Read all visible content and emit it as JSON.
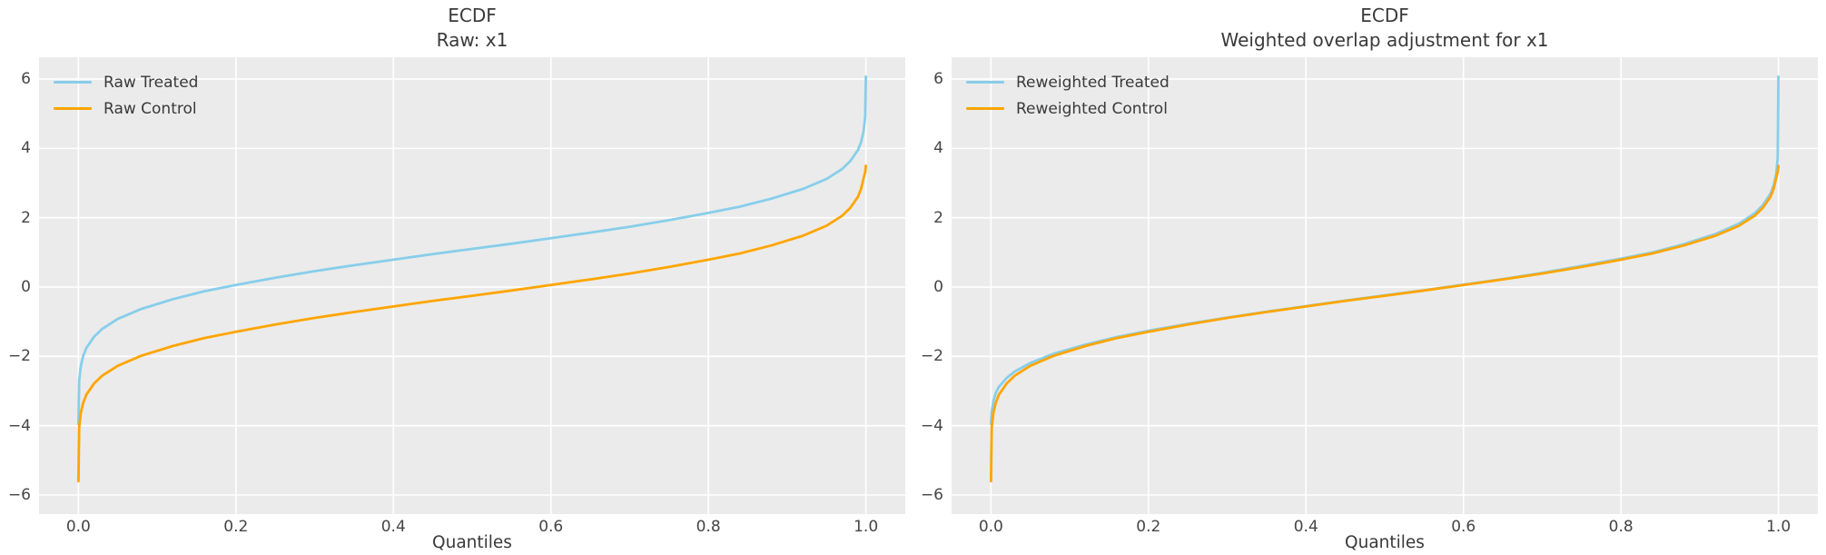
{
  "figure": {
    "background": "#ffffff",
    "plot_background": "#ebebeb",
    "grid_color": "#ffffff",
    "text_color": "#3a3a3a",
    "tick_color": "#454545"
  },
  "chart_data": [
    {
      "type": "line",
      "title": "ECDF",
      "subtitle": "Raw: x1",
      "xlabel": "Quantiles",
      "legend_position": "upper left",
      "grid": true,
      "xlim": [
        -0.05,
        1.05
      ],
      "ylim": [
        -6.55,
        6.63
      ],
      "xticks": [
        0.0,
        0.2,
        0.4,
        0.6,
        0.8,
        1.0
      ],
      "xtick_labels": [
        "0.0",
        "0.2",
        "0.4",
        "0.6",
        "0.8",
        "1.0"
      ],
      "yticks": [
        -6,
        -4,
        -2,
        0,
        2,
        4,
        6
      ],
      "ytick_labels": [
        "−6",
        "−4",
        "−2",
        "0",
        "2",
        "4",
        "6"
      ],
      "x": [
        0,
        0.001,
        0.003,
        0.006,
        0.01,
        0.02,
        0.03,
        0.05,
        0.08,
        0.12,
        0.16,
        0.2,
        0.25,
        0.3,
        0.35,
        0.4,
        0.45,
        0.5,
        0.55,
        0.6,
        0.65,
        0.7,
        0.75,
        0.8,
        0.84,
        0.88,
        0.92,
        0.95,
        0.97,
        0.98,
        0.99,
        0.994,
        0.997,
        0.999,
        1.0
      ],
      "series": [
        {
          "name": "Raw Treated",
          "color": "#87ceeb",
          "values": [
            -3.95,
            -2.7,
            -2.28,
            -1.99,
            -1.76,
            -1.43,
            -1.21,
            -0.92,
            -0.63,
            -0.35,
            -0.12,
            0.06,
            0.27,
            0.46,
            0.63,
            0.79,
            0.95,
            1.1,
            1.25,
            1.41,
            1.57,
            1.74,
            1.93,
            2.14,
            2.32,
            2.55,
            2.83,
            3.12,
            3.41,
            3.63,
            3.96,
            4.19,
            4.48,
            4.9,
            6.07
          ]
        },
        {
          "name": "Raw Control",
          "color": "#ffa500",
          "values": [
            -5.6,
            -4.05,
            -3.63,
            -3.34,
            -3.11,
            -2.78,
            -2.56,
            -2.27,
            -1.98,
            -1.7,
            -1.47,
            -1.29,
            -1.08,
            -0.89,
            -0.72,
            -0.56,
            -0.4,
            -0.25,
            -0.1,
            0.06,
            0.22,
            0.39,
            0.58,
            0.79,
            0.97,
            1.2,
            1.48,
            1.77,
            2.06,
            2.28,
            2.61,
            2.84,
            3.13,
            3.32,
            3.5
          ]
        }
      ]
    },
    {
      "type": "line",
      "title": "ECDF",
      "subtitle": "Weighted overlap adjustment for x1",
      "xlabel": "Quantiles",
      "legend_position": "upper left",
      "grid": true,
      "xlim": [
        -0.05,
        1.05
      ],
      "ylim": [
        -6.55,
        6.63
      ],
      "xticks": [
        0.0,
        0.2,
        0.4,
        0.6,
        0.8,
        1.0
      ],
      "xtick_labels": [
        "0.0",
        "0.2",
        "0.4",
        "0.6",
        "0.8",
        "1.0"
      ],
      "yticks": [
        -6,
        -4,
        -2,
        0,
        2,
        4,
        6
      ],
      "ytick_labels": [
        "−6",
        "−4",
        "−2",
        "0",
        "2",
        "4",
        "6"
      ],
      "x": [
        0,
        0.001,
        0.003,
        0.006,
        0.01,
        0.02,
        0.03,
        0.05,
        0.08,
        0.12,
        0.16,
        0.2,
        0.25,
        0.3,
        0.35,
        0.4,
        0.45,
        0.5,
        0.55,
        0.6,
        0.65,
        0.7,
        0.75,
        0.8,
        0.84,
        0.88,
        0.92,
        0.95,
        0.97,
        0.98,
        0.99,
        0.994,
        0.997,
        0.999,
        1.0
      ],
      "series": [
        {
          "name": "Reweighted Treated",
          "color": "#87ceeb",
          "values": [
            -3.95,
            -3.6,
            -3.3,
            -3.06,
            -2.88,
            -2.62,
            -2.44,
            -2.19,
            -1.92,
            -1.66,
            -1.44,
            -1.26,
            -1.06,
            -0.88,
            -0.71,
            -0.55,
            -0.39,
            -0.24,
            -0.09,
            0.07,
            0.23,
            0.41,
            0.61,
            0.82,
            1.0,
            1.24,
            1.53,
            1.83,
            2.13,
            2.36,
            2.7,
            2.94,
            3.24,
            3.7,
            6.07
          ]
        },
        {
          "name": "Reweighted Control",
          "color": "#ffa500",
          "values": [
            -5.6,
            -4.05,
            -3.63,
            -3.34,
            -3.11,
            -2.78,
            -2.56,
            -2.27,
            -1.98,
            -1.7,
            -1.47,
            -1.29,
            -1.08,
            -0.89,
            -0.72,
            -0.56,
            -0.4,
            -0.25,
            -0.1,
            0.06,
            0.22,
            0.39,
            0.58,
            0.79,
            0.97,
            1.2,
            1.48,
            1.77,
            2.06,
            2.28,
            2.61,
            2.84,
            3.13,
            3.32,
            3.5
          ]
        }
      ]
    }
  ]
}
